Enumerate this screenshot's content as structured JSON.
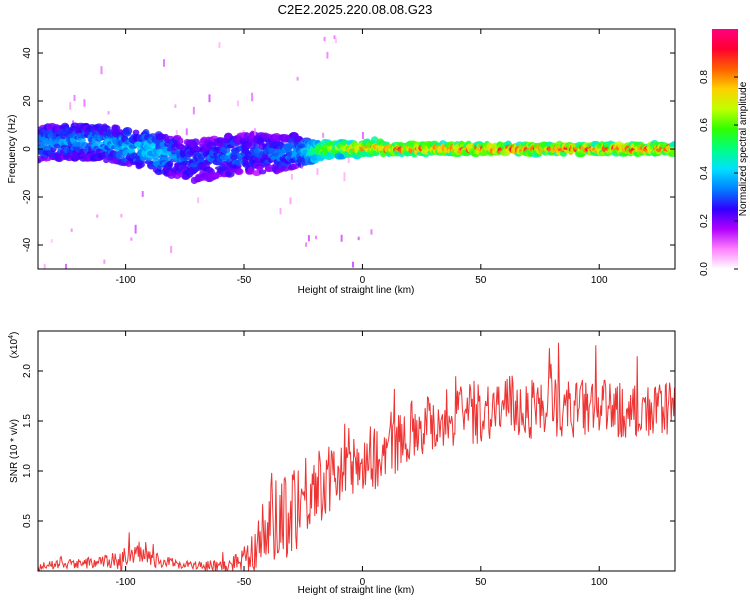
{
  "title": "C2E2.2025.220.08.08.G23",
  "chart_data": [
    {
      "type": "heatmap",
      "xlabel": "Height of straight line (km)",
      "ylabel": "Frequency (Hz)",
      "xlim": [
        -137,
        132
      ],
      "ylim": [
        -50,
        50
      ],
      "xticks": [
        -100,
        -50,
        0,
        50,
        100
      ],
      "yticks": [
        -40,
        -20,
        0,
        20,
        40
      ],
      "colorbar": {
        "label": "Normalized spectral amplitude",
        "range": [
          0,
          1
        ],
        "ticks": [
          "0.0",
          "0.2",
          "0.4",
          "0.6",
          "0.8"
        ],
        "colors": [
          "#ffffff",
          "#ff80ff",
          "#b000ff",
          "#3000ff",
          "#0080ff",
          "#00e0ff",
          "#00ff80",
          "#30ff00",
          "#c0ff00",
          "#ffd000",
          "#ff6000",
          "#ff0030",
          "#ff0080"
        ]
      },
      "ridge": {
        "x": [
          -137,
          -125,
          -115,
          -105,
          -100,
          -95,
          -90,
          -85,
          -80,
          -75,
          -70,
          -65,
          -60,
          -55,
          -50,
          -45,
          -40,
          -35,
          -30,
          -25,
          -20,
          -15,
          -10,
          -5,
          0,
          5,
          10,
          20,
          40,
          60,
          80,
          100,
          120,
          132
        ],
        "y": [
          2,
          3,
          3,
          2,
          1,
          0,
          0,
          -2,
          -3,
          -4,
          -5,
          -4,
          -3,
          -2,
          -2,
          -2,
          -2,
          -2,
          -1,
          -1,
          -1,
          0,
          0,
          0,
          0,
          1,
          0,
          0,
          0,
          0,
          0,
          0,
          0,
          0
        ],
        "amplitude": [
          0.4,
          0.4,
          0.42,
          0.42,
          0.45,
          0.45,
          0.5,
          0.45,
          0.4,
          0.35,
          0.35,
          0.35,
          0.35,
          0.4,
          0.35,
          0.35,
          0.35,
          0.4,
          0.4,
          0.45,
          0.6,
          0.75,
          0.75,
          0.85,
          0.9,
          0.9,
          0.95,
          0.97,
          0.98,
          0.98,
          0.98,
          0.98,
          0.98,
          0.98
        ],
        "spread_hz": [
          10,
          10,
          10,
          10,
          10,
          10,
          10,
          12,
          12,
          12,
          12,
          12,
          12,
          12,
          12,
          12,
          12,
          10,
          10,
          8,
          6,
          5,
          5,
          4,
          4,
          4,
          3,
          3,
          3,
          3,
          3,
          3,
          3,
          3
        ]
      }
    },
    {
      "type": "line",
      "xlabel": "Height of straight line (km)",
      "ylabel": "SNR (10 * v/v)",
      "y_multiplier": "(x10",
      "y_multiplier_exp": "4",
      "y_multiplier_close": ")",
      "xlim": [
        -137,
        132
      ],
      "ylim": [
        0,
        2.4
      ],
      "xticks": [
        -100,
        -50,
        0,
        50,
        100
      ],
      "yticks": [
        "0.5",
        "1.0",
        "1.5",
        "2.0"
      ],
      "ytick_values": [
        0.5,
        1.0,
        1.5,
        2.0
      ],
      "series": [
        {
          "color": "#ee3333",
          "envelope_x": [
            -137,
            -120,
            -110,
            -100,
            -95,
            -90,
            -80,
            -70,
            -60,
            -55,
            -50,
            -45,
            -40,
            -35,
            -30,
            -25,
            -20,
            -15,
            -10,
            -5,
            0,
            5,
            10,
            15,
            20,
            30,
            40,
            50,
            60,
            70,
            80,
            90,
            100,
            110,
            120,
            132
          ],
          "envelope_mean": [
            0.05,
            0.07,
            0.09,
            0.12,
            0.14,
            0.12,
            0.08,
            0.05,
            0.05,
            0.07,
            0.15,
            0.28,
            0.4,
            0.55,
            0.65,
            0.75,
            0.85,
            0.9,
            0.95,
            1.02,
            1.1,
            1.15,
            1.15,
            1.3,
            1.42,
            1.5,
            1.55,
            1.6,
            1.65,
            1.62,
            1.65,
            1.62,
            1.62,
            1.6,
            1.58,
            1.62
          ],
          "envelope_noise": [
            0.04,
            0.05,
            0.06,
            0.12,
            0.12,
            0.08,
            0.05,
            0.05,
            0.06,
            0.08,
            0.15,
            0.3,
            0.4,
            0.45,
            0.5,
            0.45,
            0.4,
            0.35,
            0.3,
            0.3,
            0.3,
            0.35,
            0.3,
            0.3,
            0.3,
            0.32,
            0.32,
            0.32,
            0.32,
            0.32,
            0.3,
            0.3,
            0.3,
            0.28,
            0.28,
            0.28
          ]
        }
      ]
    }
  ]
}
